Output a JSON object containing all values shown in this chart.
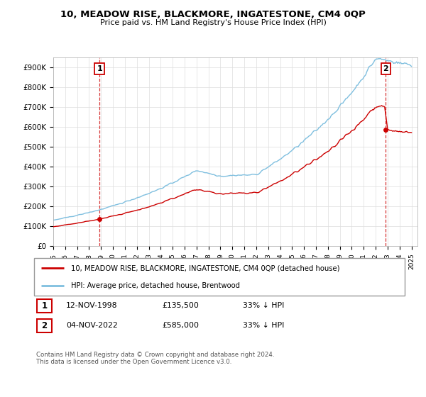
{
  "title": "10, MEADOW RISE, BLACKMORE, INGATESTONE, CM4 0QP",
  "subtitle": "Price paid vs. HM Land Registry's House Price Index (HPI)",
  "ylabel_ticks": [
    "£0",
    "£100K",
    "£200K",
    "£300K",
    "£400K",
    "£500K",
    "£600K",
    "£700K",
    "£800K",
    "£900K"
  ],
  "ytick_values": [
    0,
    100000,
    200000,
    300000,
    400000,
    500000,
    600000,
    700000,
    800000,
    900000
  ],
  "ytop_label": "£900K",
  "ylim": [
    0,
    950000
  ],
  "xlim_start": 1995.0,
  "xlim_end": 2025.5,
  "hpi_color": "#7fbfdf",
  "price_color": "#cc0000",
  "marker_color": "#cc0000",
  "sale1_date_num": 1998.87,
  "sale1_price": 135500,
  "sale2_date_num": 2022.84,
  "sale2_price": 585000,
  "label1_text": "1",
  "label2_text": "2",
  "legend_line1": "10, MEADOW RISE, BLACKMORE, INGATESTONE, CM4 0QP (detached house)",
  "legend_line2": "HPI: Average price, detached house, Brentwood",
  "table_row1": [
    "1",
    "12-NOV-1998",
    "£135,500",
    "33% ↓ HPI"
  ],
  "table_row2": [
    "2",
    "04-NOV-2022",
    "£585,000",
    "33% ↓ HPI"
  ],
  "footer": "Contains HM Land Registry data © Crown copyright and database right 2024.\nThis data is licensed under the Open Government Licence v3.0.",
  "bg_color": "#ffffff",
  "grid_color": "#dddddd",
  "xtick_years": [
    1995,
    1996,
    1997,
    1998,
    1999,
    2000,
    2001,
    2002,
    2003,
    2004,
    2005,
    2006,
    2007,
    2008,
    2009,
    2010,
    2011,
    2012,
    2013,
    2014,
    2015,
    2016,
    2017,
    2018,
    2019,
    2020,
    2021,
    2022,
    2023,
    2024,
    2025
  ],
  "hpi_seed": 42,
  "price_seed": 99
}
